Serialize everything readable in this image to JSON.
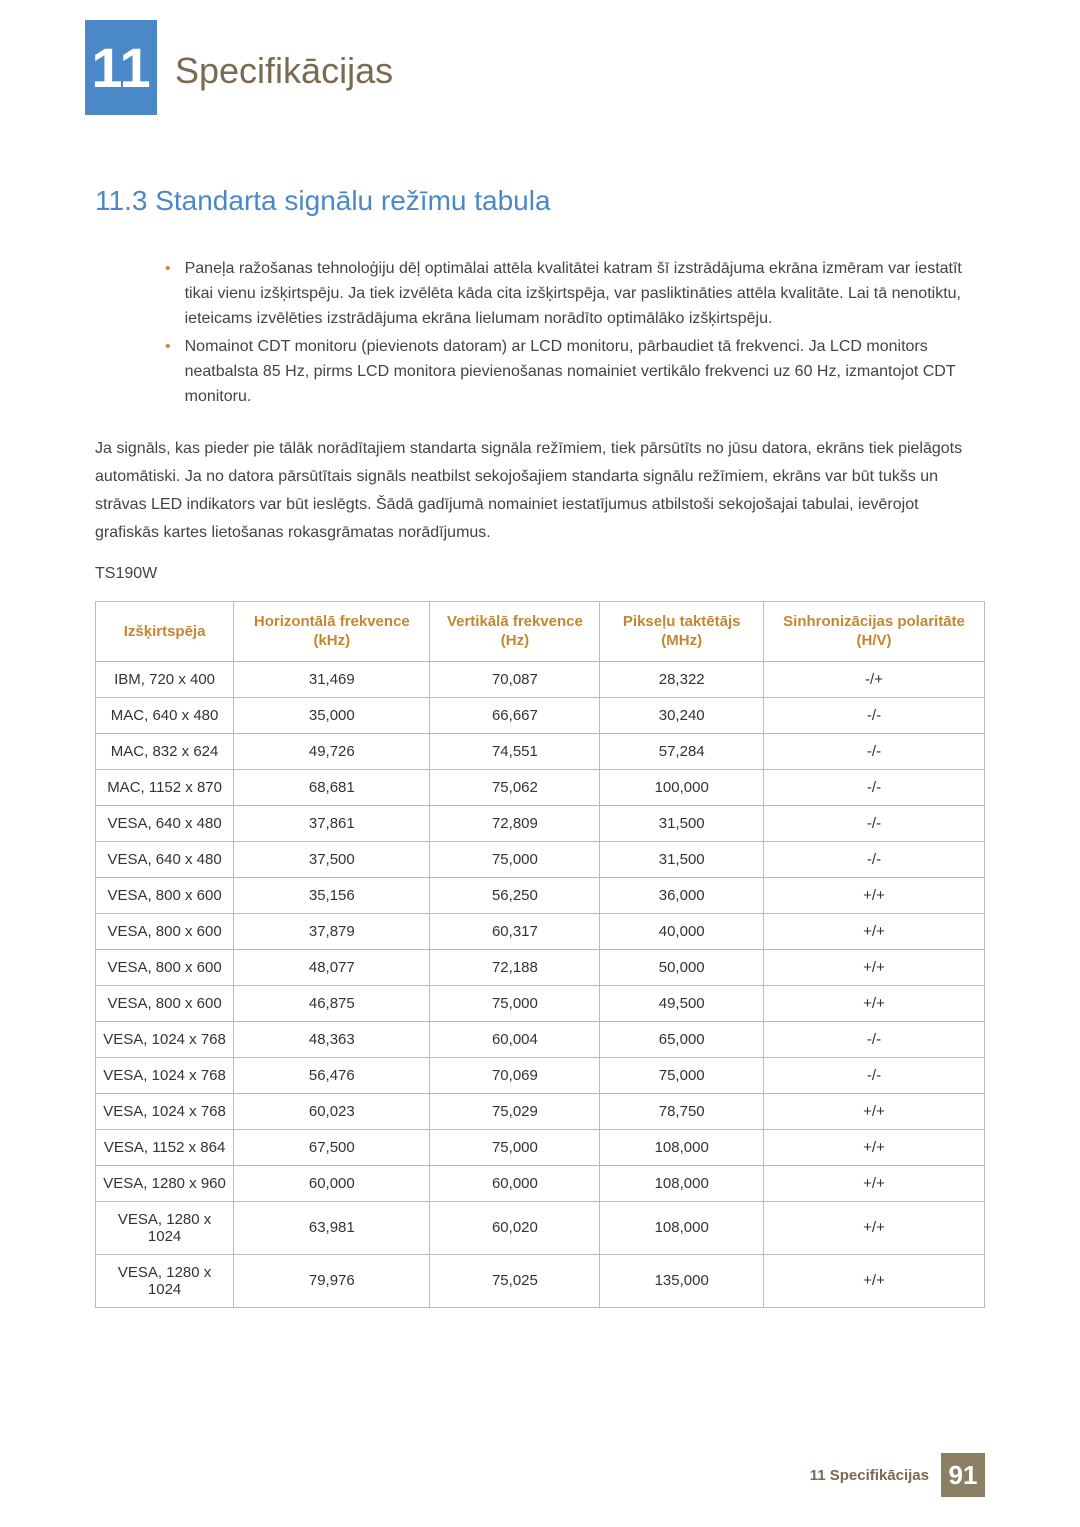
{
  "header": {
    "chapter_number": "11",
    "chapter_title": "Specifikācijas"
  },
  "section": {
    "number": "11.3",
    "title": "Standarta signālu režīmu tabula",
    "heading": "11.3  Standarta signālu režīmu tabula"
  },
  "bullets": [
    "Paneļa ražošanas tehnoloģiju dēļ optimālai attēla kvalitātei katram šī izstrādājuma ekrāna izmēram var iestatīt tikai vienu izšķirtspēju. Ja tiek izvēlēta kāda cita izšķirtspēja, var pasliktināties attēla kvalitāte. Lai tā nenotiktu, ieteicams izvēlēties izstrādājuma ekrāna lielumam norādīto optimālāko izšķirtspēju.",
    "Nomainot CDT monitoru (pievienots datoram) ar LCD monitoru, pārbaudiet tā frekvenci. Ja LCD monitors neatbalsta 85 Hz, pirms LCD monitora pievienošanas nomainiet vertikālo frekvenci uz 60 Hz, izmantojot CDT monitoru."
  ],
  "paragraph": "Ja signāls, kas pieder pie tālāk norādītajiem standarta signāla režīmiem, tiek pārsūtīts no jūsu datora, ekrāns tiek pielāgots automātiski. Ja no datora pārsūtītais signāls neatbilst sekojošajiem standarta signālu režīmiem, ekrāns var būt tukšs un strāvas LED indikators var būt ieslēgts. Šādā gadījumā nomainiet iestatījumus atbilstoši sekojošajai tabulai, ievērojot grafiskās kartes lietošanas rokasgrāmatas norādījumus.",
  "model": "TS190W",
  "table": {
    "columns": [
      "Izšķirtspēja",
      "Horizontālā frekvence (kHz)",
      "Vertikālā frekvence (Hz)",
      "Pikseļu taktētājs (MHz)",
      "Sinhronizācijas polaritāte (H/V)"
    ],
    "rows": [
      [
        "IBM, 720 x 400",
        "31,469",
        "70,087",
        "28,322",
        "-/+"
      ],
      [
        "MAC, 640 x 480",
        "35,000",
        "66,667",
        "30,240",
        "-/-"
      ],
      [
        "MAC, 832 x 624",
        "49,726",
        "74,551",
        "57,284",
        "-/-"
      ],
      [
        "MAC, 1152 x 870",
        "68,681",
        "75,062",
        "100,000",
        "-/-"
      ],
      [
        "VESA, 640 x 480",
        "37,861",
        "72,809",
        "31,500",
        "-/-"
      ],
      [
        "VESA, 640 x 480",
        "37,500",
        "75,000",
        "31,500",
        "-/-"
      ],
      [
        "VESA, 800 x 600",
        "35,156",
        "56,250",
        "36,000",
        "+/+"
      ],
      [
        "VESA, 800 x 600",
        "37,879",
        "60,317",
        "40,000",
        "+/+"
      ],
      [
        "VESA, 800 x 600",
        "48,077",
        "72,188",
        "50,000",
        "+/+"
      ],
      [
        "VESA, 800 x 600",
        "46,875",
        "75,000",
        "49,500",
        "+/+"
      ],
      [
        "VESA, 1024 x 768",
        "48,363",
        "60,004",
        "65,000",
        "-/-"
      ],
      [
        "VESA, 1024 x 768",
        "56,476",
        "70,069",
        "75,000",
        "-/-"
      ],
      [
        "VESA, 1024 x 768",
        "60,023",
        "75,029",
        "78,750",
        "+/+"
      ],
      [
        "VESA, 1152 x 864",
        "67,500",
        "75,000",
        "108,000",
        "+/+"
      ],
      [
        "VESA, 1280 x 960",
        "60,000",
        "60,000",
        "108,000",
        "+/+"
      ],
      [
        "VESA, 1280 x 1024",
        "63,981",
        "60,020",
        "108,000",
        "+/+"
      ],
      [
        "VESA, 1280 x 1024",
        "79,976",
        "75,025",
        "135,000",
        "+/+"
      ]
    ],
    "header_color": "#c4872f",
    "border_color": "#bbbbbb"
  },
  "footer": {
    "text": "11 Specifikācijas",
    "page": "91"
  }
}
